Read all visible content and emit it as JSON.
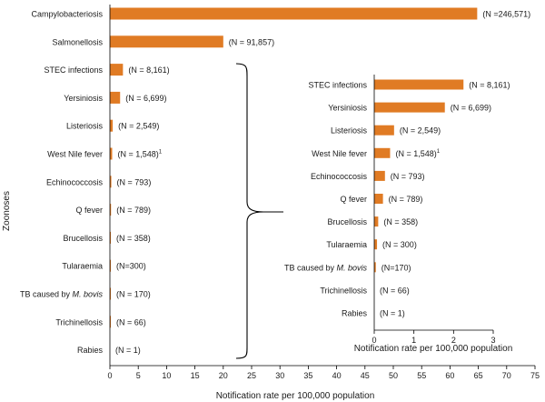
{
  "colors": {
    "bar": "#e07b24",
    "axis": "#000000",
    "text": "#1a1a1a"
  },
  "chart_data": [
    {
      "type": "bar",
      "orientation": "horizontal",
      "ylabel": "Zoonoses",
      "xlabel": "Notification rate per 100,000 population",
      "xlim": [
        0,
        75
      ],
      "xticks": [
        "0",
        "5",
        "10",
        "15",
        "20",
        "25",
        "30",
        "35",
        "40",
        "45",
        "50",
        "55",
        "60",
        "65",
        "70",
        "75"
      ],
      "grid": false,
      "categories": [
        {
          "label": "Campylobacteriosis",
          "value": 64.8,
          "n": "(N =246,571)"
        },
        {
          "label": "Salmonellosis",
          "value": 20.0,
          "n": "(N = 91,857)"
        },
        {
          "label": "STEC infections",
          "value": 2.3,
          "n": "(N = 8,161)"
        },
        {
          "label": "Yersiniosis",
          "value": 1.8,
          "n": "(N = 6,699)"
        },
        {
          "label": "Listeriosis",
          "value": 0.5,
          "n": "(N = 2,549)"
        },
        {
          "label": "West Nile fever",
          "value": 0.4,
          "n": "(N = 1,548)",
          "sup": "1"
        },
        {
          "label": "Echinococcosis",
          "value": 0.25,
          "n": "(N = 793)"
        },
        {
          "label": "Q fever",
          "value": 0.2,
          "n": "(N = 789)"
        },
        {
          "label": "Brucellosis",
          "value": 0.08,
          "n": "(N = 358)"
        },
        {
          "label": "Tularaemia",
          "value": 0.05,
          "n": "(N=300)"
        },
        {
          "label": "TB caused by ",
          "label_italic": "M. bovis",
          "value": 0.03,
          "n": "(N = 170)"
        },
        {
          "label": "Trichinellosis",
          "value": 0.02,
          "n": "(N = 66)"
        },
        {
          "label": "Rabies",
          "value": 0.0,
          "n": "(N = 1)"
        }
      ]
    },
    {
      "type": "bar",
      "orientation": "horizontal",
      "inset": true,
      "xlabel": "Notification rate per 100,000 population",
      "xlim": [
        0,
        3
      ],
      "xticks": [
        "0",
        "1",
        "2",
        "3"
      ],
      "grid": false,
      "categories": [
        {
          "label": "STEC infections",
          "value": 2.25,
          "n": "(N = 8,161)"
        },
        {
          "label": "Yersiniosis",
          "value": 1.78,
          "n": "(N = 6,699)"
        },
        {
          "label": "Listeriosis",
          "value": 0.5,
          "n": "(N = 2,549)"
        },
        {
          "label": "West Nile fever",
          "value": 0.4,
          "n": "(N = 1,548)",
          "sup": "1"
        },
        {
          "label": "Echinococcosis",
          "value": 0.27,
          "n": "(N = 793)"
        },
        {
          "label": "Q fever",
          "value": 0.22,
          "n": "(N = 789)"
        },
        {
          "label": "Brucellosis",
          "value": 0.1,
          "n": "(N = 358)"
        },
        {
          "label": "Tularaemia",
          "value": 0.07,
          "n": "(N = 300)"
        },
        {
          "label": "TB caused by ",
          "label_italic": "M. bovis",
          "value": 0.04,
          "n": "(N=170)"
        },
        {
          "label": "Trichinellosis",
          "value": 0.0,
          "n": "(N = 66)"
        },
        {
          "label": "Rabies",
          "value": 0.0,
          "n": "(N = 1)"
        }
      ]
    }
  ]
}
